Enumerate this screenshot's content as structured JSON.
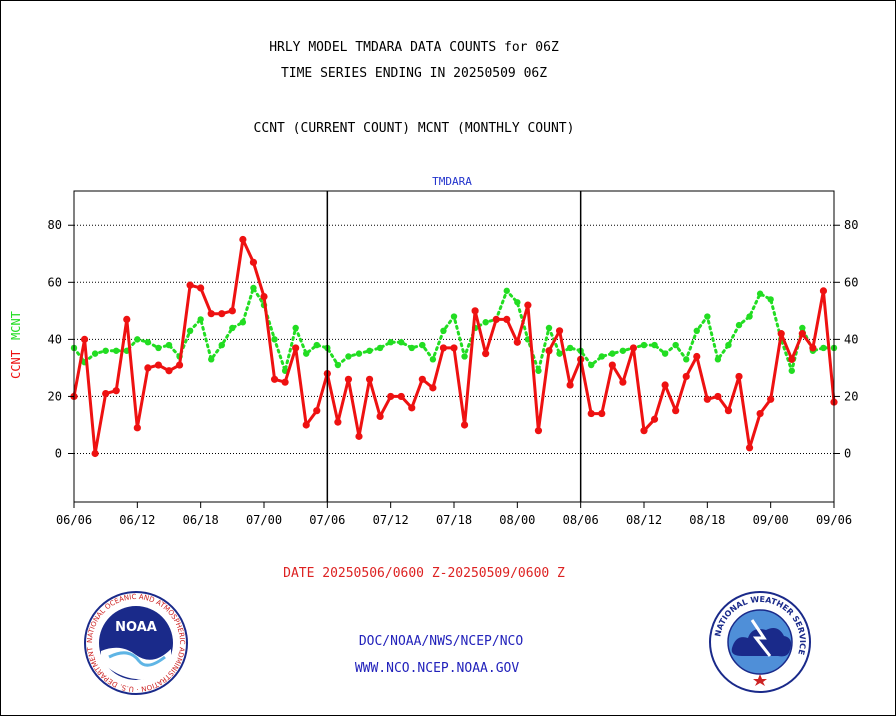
{
  "header": {
    "title_line1": "HRLY MODEL TMDARA DATA COUNTS for 06Z",
    "title_line2": "TIME SERIES ENDING IN 20250509 06Z",
    "subtitle": "CCNT (CURRENT COUNT) MCNT (MONTHLY COUNT)"
  },
  "footer": {
    "date_range": "DATE 20250506/0600 Z-20250509/0600 Z",
    "org_line": "DOC/NOAA/NWS/NCEP/NCO",
    "url_line": "WWW.NCO.NCEP.NOAA.GOV",
    "noaa_logo_text": "NOAA",
    "noaa_ring_text": "NATIONAL OCEANIC AND ATMOSPHERIC ADMINISTRATION · U.S. DEPARTMENT OF COMMERCE ·",
    "nws_ring_text": "NATIONAL WEATHER SERVICE"
  },
  "colors": {
    "ccnt": "#ee1111",
    "mcnt": "#22dd22",
    "title": "#000000",
    "date_range": "#dd2222",
    "links": "#2222bb",
    "panel_title": "#2233cc"
  },
  "chart_data": {
    "type": "line",
    "title": "TMDARA",
    "ylabel_parts": [
      "CCNT",
      "MCNT"
    ],
    "ylim": [
      -17,
      92
    ],
    "yticks": [
      0,
      20,
      40,
      60,
      80
    ],
    "grid": true,
    "xtick_labels": [
      "06/06",
      "06/12",
      "06/18",
      "07/00",
      "07/06",
      "07/12",
      "07/18",
      "08/00",
      "08/06",
      "08/12",
      "08/18",
      "09/00",
      "09/06"
    ],
    "panels": 3,
    "series": [
      {
        "name": "CCNT",
        "style": "solid-red",
        "values": [
          20,
          40,
          0,
          21,
          22,
          47,
          9,
          30,
          31,
          29,
          31,
          59,
          58,
          49,
          49,
          50,
          75,
          67,
          55,
          26,
          25,
          37,
          10,
          15,
          28,
          11,
          26,
          6,
          26,
          13,
          20,
          20,
          16,
          26,
          23,
          37,
          37,
          10,
          50,
          35,
          47,
          47,
          39,
          52,
          8,
          36,
          43,
          24,
          33,
          14,
          14,
          31,
          25,
          37,
          8,
          12,
          24,
          15,
          27,
          34,
          19,
          20,
          15,
          27,
          2,
          14,
          19,
          42,
          33,
          42,
          37,
          57,
          18
        ]
      },
      {
        "name": "MCNT",
        "style": "dotted-green",
        "values": [
          37,
          32,
          35,
          36,
          36,
          36,
          40,
          39,
          37,
          38,
          34,
          43,
          47,
          33,
          38,
          44,
          46,
          58,
          52,
          40,
          29,
          44,
          35,
          38,
          37,
          31,
          34,
          35,
          36,
          37,
          39,
          39,
          37,
          38,
          33,
          43,
          48,
          34,
          44,
          46,
          47,
          57,
          53,
          40,
          29,
          44,
          35,
          37,
          36,
          31,
          34,
          35,
          36,
          37,
          38,
          38,
          35,
          38,
          33,
          43,
          48,
          33,
          38,
          45,
          48,
          56,
          54,
          40,
          29,
          44,
          36,
          37,
          37
        ]
      }
    ]
  }
}
